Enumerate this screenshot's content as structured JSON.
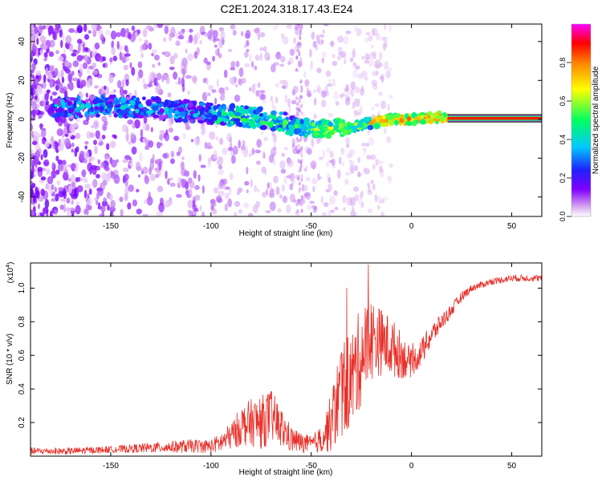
{
  "title": "C2E1.2024.318.17.43.E24",
  "chart_data": [
    {
      "type": "heatmap",
      "xlabel": "Height of straight line (km)",
      "ylabel": "Frequency (Hz)",
      "xlim": [
        -190,
        65
      ],
      "ylim": [
        -50,
        49
      ],
      "x_ticks": [
        "-150",
        "-100",
        "-50",
        "0",
        "50"
      ],
      "x_tick_values": [
        -150,
        -100,
        -50,
        0,
        50
      ],
      "y_ticks": [
        "40",
        "20",
        "0",
        "-20",
        "-40"
      ],
      "y_tick_values": [
        40,
        20,
        0,
        -20,
        -40
      ],
      "colorbar": {
        "label": "Normalized spectral amplitude",
        "range": [
          0,
          1
        ],
        "ticks": [
          "0.0",
          "0.2",
          "0.4",
          "0.6",
          "0.8"
        ],
        "tick_values": [
          0.0,
          0.2,
          0.4,
          0.6,
          0.8
        ],
        "colors": [
          "#ffffff",
          "#d8a8f0",
          "#8000ff",
          "#2020ff",
          "#00c8ff",
          "#00ff60",
          "#ffff00",
          "#ff8000",
          "#ff0000",
          "#ff00ff"
        ]
      },
      "ridge": {
        "x": [
          -170,
          -150,
          -130,
          -110,
          -90,
          -70,
          -55,
          -45,
          -30,
          -20,
          -10,
          0,
          10,
          20,
          40,
          65
        ],
        "y": [
          6,
          7,
          6,
          4,
          2,
          0,
          -4,
          -5,
          -4,
          -2,
          0,
          0,
          1,
          0.5,
          0.5,
          0.5
        ]
      }
    },
    {
      "type": "line",
      "xlabel": "Height of straight line (km)",
      "ylabel": "SNR (10 * v/v)",
      "yunit": "(x10",
      "yunit_exp": "4",
      "yunit_close": ")",
      "xlim": [
        -190,
        65
      ],
      "ylim": [
        0,
        1.15
      ],
      "x_ticks": [
        "-150",
        "-100",
        "-50",
        "0",
        "50"
      ],
      "x_tick_values": [
        -150,
        -100,
        -50,
        0,
        50
      ],
      "y_ticks": [
        "0.2",
        "0.4",
        "0.6",
        "0.8",
        "1.0"
      ],
      "y_tick_values": [
        0.2,
        0.4,
        0.6,
        0.8,
        1.0
      ],
      "color": "#e8302a",
      "series": [
        {
          "name": "SNR",
          "x": [
            -190,
            -170,
            -150,
            -130,
            -110,
            -100,
            -95,
            -90,
            -85,
            -80,
            -75,
            -70,
            -65,
            -60,
            -55,
            -50,
            -45,
            -40,
            -35,
            -30,
            -25,
            -20,
            -15,
            -10,
            -5,
            0,
            5,
            10,
            15,
            20,
            25,
            30,
            40,
            50,
            65
          ],
          "y": [
            0.03,
            0.03,
            0.04,
            0.05,
            0.06,
            0.06,
            0.08,
            0.12,
            0.18,
            0.2,
            0.2,
            0.24,
            0.17,
            0.1,
            0.08,
            0.07,
            0.1,
            0.2,
            0.4,
            0.45,
            0.6,
            0.7,
            0.68,
            0.65,
            0.6,
            0.55,
            0.62,
            0.72,
            0.8,
            0.87,
            0.95,
            1.0,
            1.04,
            1.06,
            1.06
          ],
          "amp": [
            0.02,
            0.02,
            0.02,
            0.03,
            0.04,
            0.04,
            0.06,
            0.08,
            0.12,
            0.14,
            0.16,
            0.16,
            0.12,
            0.08,
            0.06,
            0.05,
            0.08,
            0.18,
            0.3,
            0.3,
            0.3,
            0.25,
            0.2,
            0.18,
            0.14,
            0.08,
            0.08,
            0.07,
            0.05,
            0.04,
            0.03,
            0.02,
            0.02,
            0.02,
            0.02
          ]
        }
      ]
    }
  ]
}
